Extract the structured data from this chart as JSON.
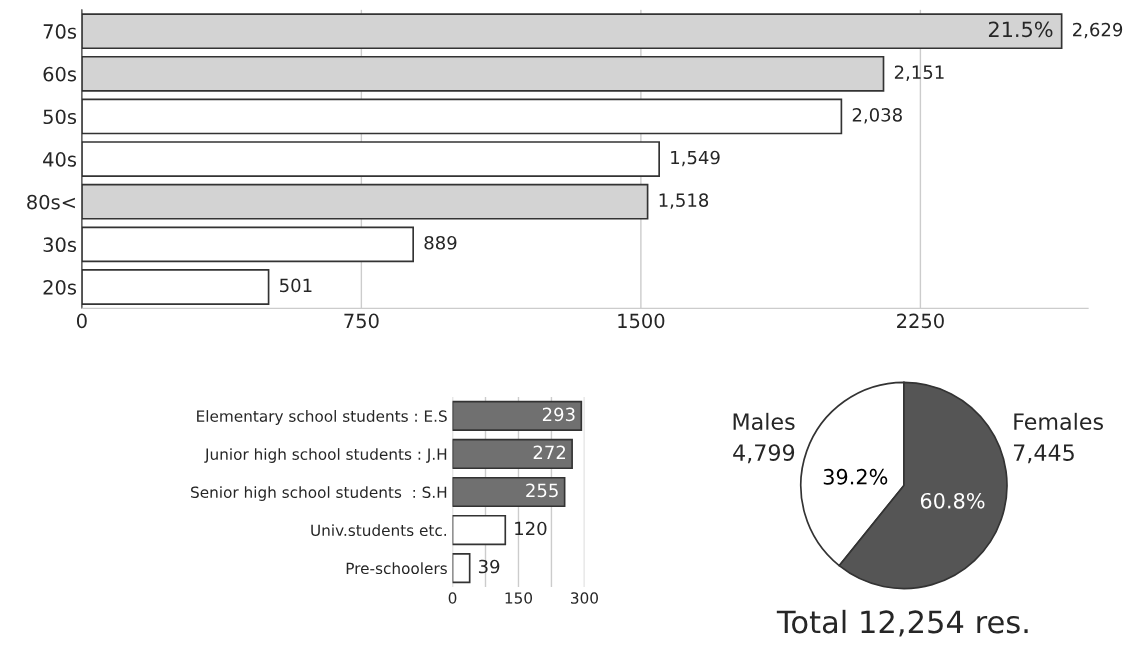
{
  "chart_data": [
    {
      "type": "bar",
      "orientation": "horizontal",
      "categories": [
        "70s",
        "60s",
        "50s",
        "40s",
        "80s<",
        "30s",
        "20s"
      ],
      "values": [
        2629,
        2151,
        2038,
        1549,
        1518,
        889,
        501
      ],
      "value_labels": [
        "2,629",
        "2,151",
        "2,038",
        "1,549",
        "1,518",
        "889",
        "501"
      ],
      "colors": [
        "#d3d3d3",
        "#d3d3d3",
        "#ffffff",
        "#ffffff",
        "#d3d3d3",
        "#ffffff",
        "#ffffff"
      ],
      "xlim": [
        0,
        2700
      ],
      "xticks": [
        0,
        750,
        1500,
        2250
      ],
      "grid": "x",
      "annotations": [
        {
          "text": "21.5%",
          "x": 2629,
          "y": "70s"
        }
      ]
    },
    {
      "type": "bar",
      "orientation": "horizontal",
      "categories": [
        "Elementary school students : E.S",
        "Junior high school students : J.H",
        "Senior high school students  : S.H",
        "Univ.students etc.",
        "Pre-schoolers"
      ],
      "values": [
        293,
        272,
        255,
        120,
        39
      ],
      "colors": [
        "#707070",
        "#707070",
        "#707070",
        "#ffffff",
        "#ffffff"
      ],
      "xlim": [
        0,
        300
      ],
      "xticks": [
        0,
        {
          "value": 75,
          "label": null
        },
        150,
        {
          "value": 225,
          "label": null
        },
        300
      ],
      "grid": "x",
      "data_labels": true
    },
    {
      "type": "pie",
      "categories": [
        "Males",
        "Females"
      ],
      "values": [
        39.2,
        60.8
      ],
      "colors": [
        "#ffffff",
        "#555555"
      ],
      "value_labels": [
        "39.2%",
        "60.8%"
      ],
      "annotations": [
        "4,799",
        "7,445",
        "Total 12,254 res."
      ]
    }
  ]
}
